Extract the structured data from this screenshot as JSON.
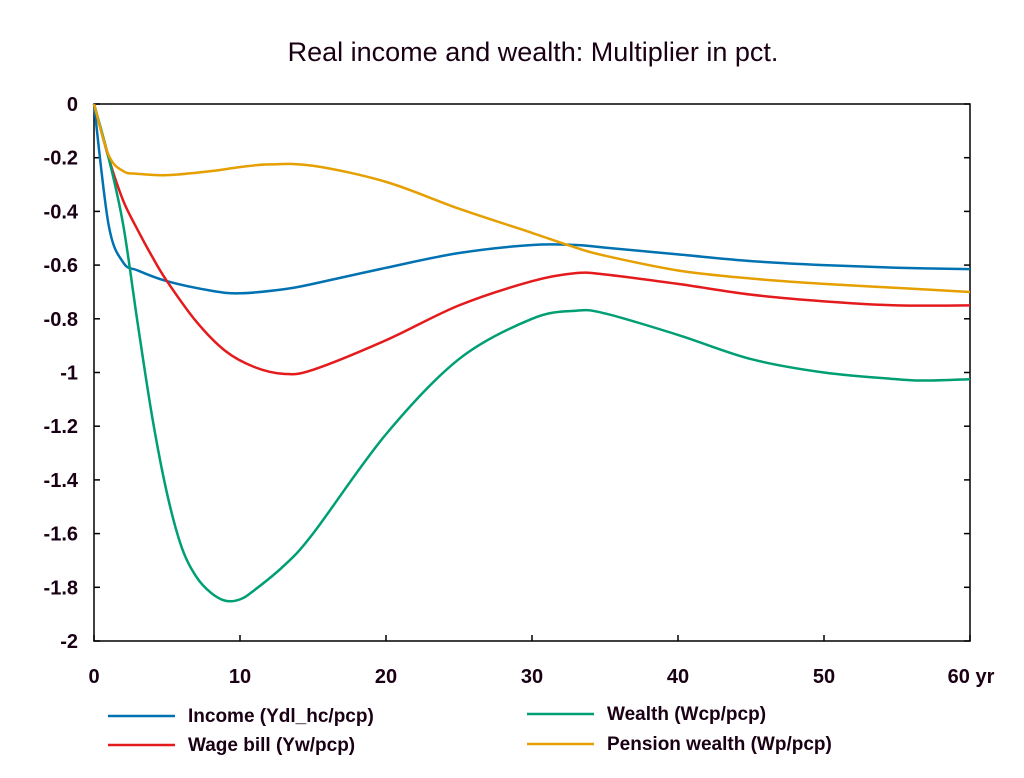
{
  "chart_data": {
    "type": "line",
    "title": "Real income and wealth: Multiplier in pct.",
    "xlabel": "",
    "ylabel": "",
    "x_unit_label": "yr",
    "xlim": [
      0,
      60
    ],
    "ylim": [
      -2,
      0
    ],
    "x_ticks": [
      0,
      10,
      20,
      30,
      40,
      50,
      60
    ],
    "x_tick_labels": [
      "0",
      "10",
      "20",
      "30",
      "40",
      "50",
      "60 yr"
    ],
    "y_ticks": [
      0,
      -0.2,
      -0.4,
      -0.6,
      -0.8,
      -1,
      -1.2,
      -1.4,
      -1.6,
      -1.8,
      -2
    ],
    "y_tick_labels": [
      "0",
      "-0.2",
      "-0.4",
      "-0.6",
      "-0.8",
      "-1",
      "-1.2",
      "-1.4",
      "-1.6",
      "-1.8",
      "-2"
    ],
    "grid": false,
    "legend_position": "bottom",
    "series": [
      {
        "name": "Income (Ydl_hc/pcp)",
        "color": "#0072b2",
        "x": [
          0,
          1,
          2,
          3,
          5,
          8,
          10,
          13,
          15,
          20,
          25,
          30,
          33,
          35,
          40,
          45,
          50,
          55,
          60
        ],
        "values": [
          0,
          -0.45,
          -0.59,
          -0.62,
          -0.66,
          -0.695,
          -0.705,
          -0.69,
          -0.67,
          -0.61,
          -0.555,
          -0.525,
          -0.525,
          -0.535,
          -0.56,
          -0.585,
          -0.6,
          -0.61,
          -0.615
        ]
      },
      {
        "name": "Wage bill (Yw/pcp)",
        "color": "#e41a1c",
        "x": [
          0,
          1,
          2,
          3,
          4,
          5,
          7,
          9,
          11,
          13,
          15,
          20,
          25,
          30,
          33,
          35,
          40,
          45,
          50,
          55,
          60
        ],
        "values": [
          0,
          -0.2,
          -0.36,
          -0.47,
          -0.57,
          -0.66,
          -0.81,
          -0.92,
          -0.98,
          -1.005,
          -0.99,
          -0.88,
          -0.75,
          -0.66,
          -0.63,
          -0.635,
          -0.67,
          -0.71,
          -0.735,
          -0.75,
          -0.75
        ]
      },
      {
        "name": "Wealth (Wcp/pcp)",
        "color": "#009e73",
        "x": [
          0,
          1,
          2,
          3,
          4,
          5,
          6,
          7,
          8,
          9,
          10,
          11,
          13,
          15,
          20,
          25,
          30,
          33,
          35,
          40,
          45,
          50,
          55,
          57,
          60
        ],
        "values": [
          0,
          -0.2,
          -0.45,
          -0.82,
          -1.17,
          -1.45,
          -1.65,
          -1.76,
          -1.82,
          -1.85,
          -1.845,
          -1.81,
          -1.72,
          -1.6,
          -1.23,
          -0.95,
          -0.8,
          -0.77,
          -0.78,
          -0.86,
          -0.95,
          -1.0,
          -1.025,
          -1.03,
          -1.025
        ]
      },
      {
        "name": "Pension wealth (Wp/pcp)",
        "color": "#e69f00",
        "x": [
          0,
          1,
          2,
          3,
          5,
          8,
          10,
          12,
          15,
          20,
          25,
          30,
          33,
          35,
          40,
          45,
          50,
          55,
          60
        ],
        "values": [
          0,
          -0.19,
          -0.25,
          -0.26,
          -0.265,
          -0.25,
          -0.235,
          -0.225,
          -0.23,
          -0.29,
          -0.39,
          -0.48,
          -0.535,
          -0.565,
          -0.62,
          -0.65,
          -0.67,
          -0.685,
          -0.7
        ]
      }
    ]
  }
}
